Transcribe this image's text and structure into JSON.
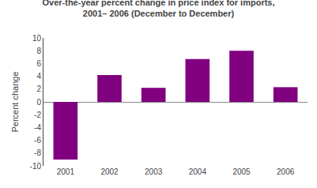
{
  "chart_data": {
    "type": "bar",
    "title": "Over-the-year percent change in price index for imports,\n2001– 2006 (December to December)",
    "ylabel": "Percent change",
    "categories": [
      "2001",
      "2002",
      "2003",
      "2004",
      "2005",
      "2006"
    ],
    "values": [
      -9.0,
      4.2,
      2.2,
      6.7,
      8.0,
      2.3
    ],
    "color": "#800080",
    "ylim": [
      -10,
      10
    ],
    "yticks": [
      -10,
      -8,
      -6,
      -4,
      -2,
      0,
      2,
      4,
      6,
      8,
      10
    ],
    "grid": false
  }
}
